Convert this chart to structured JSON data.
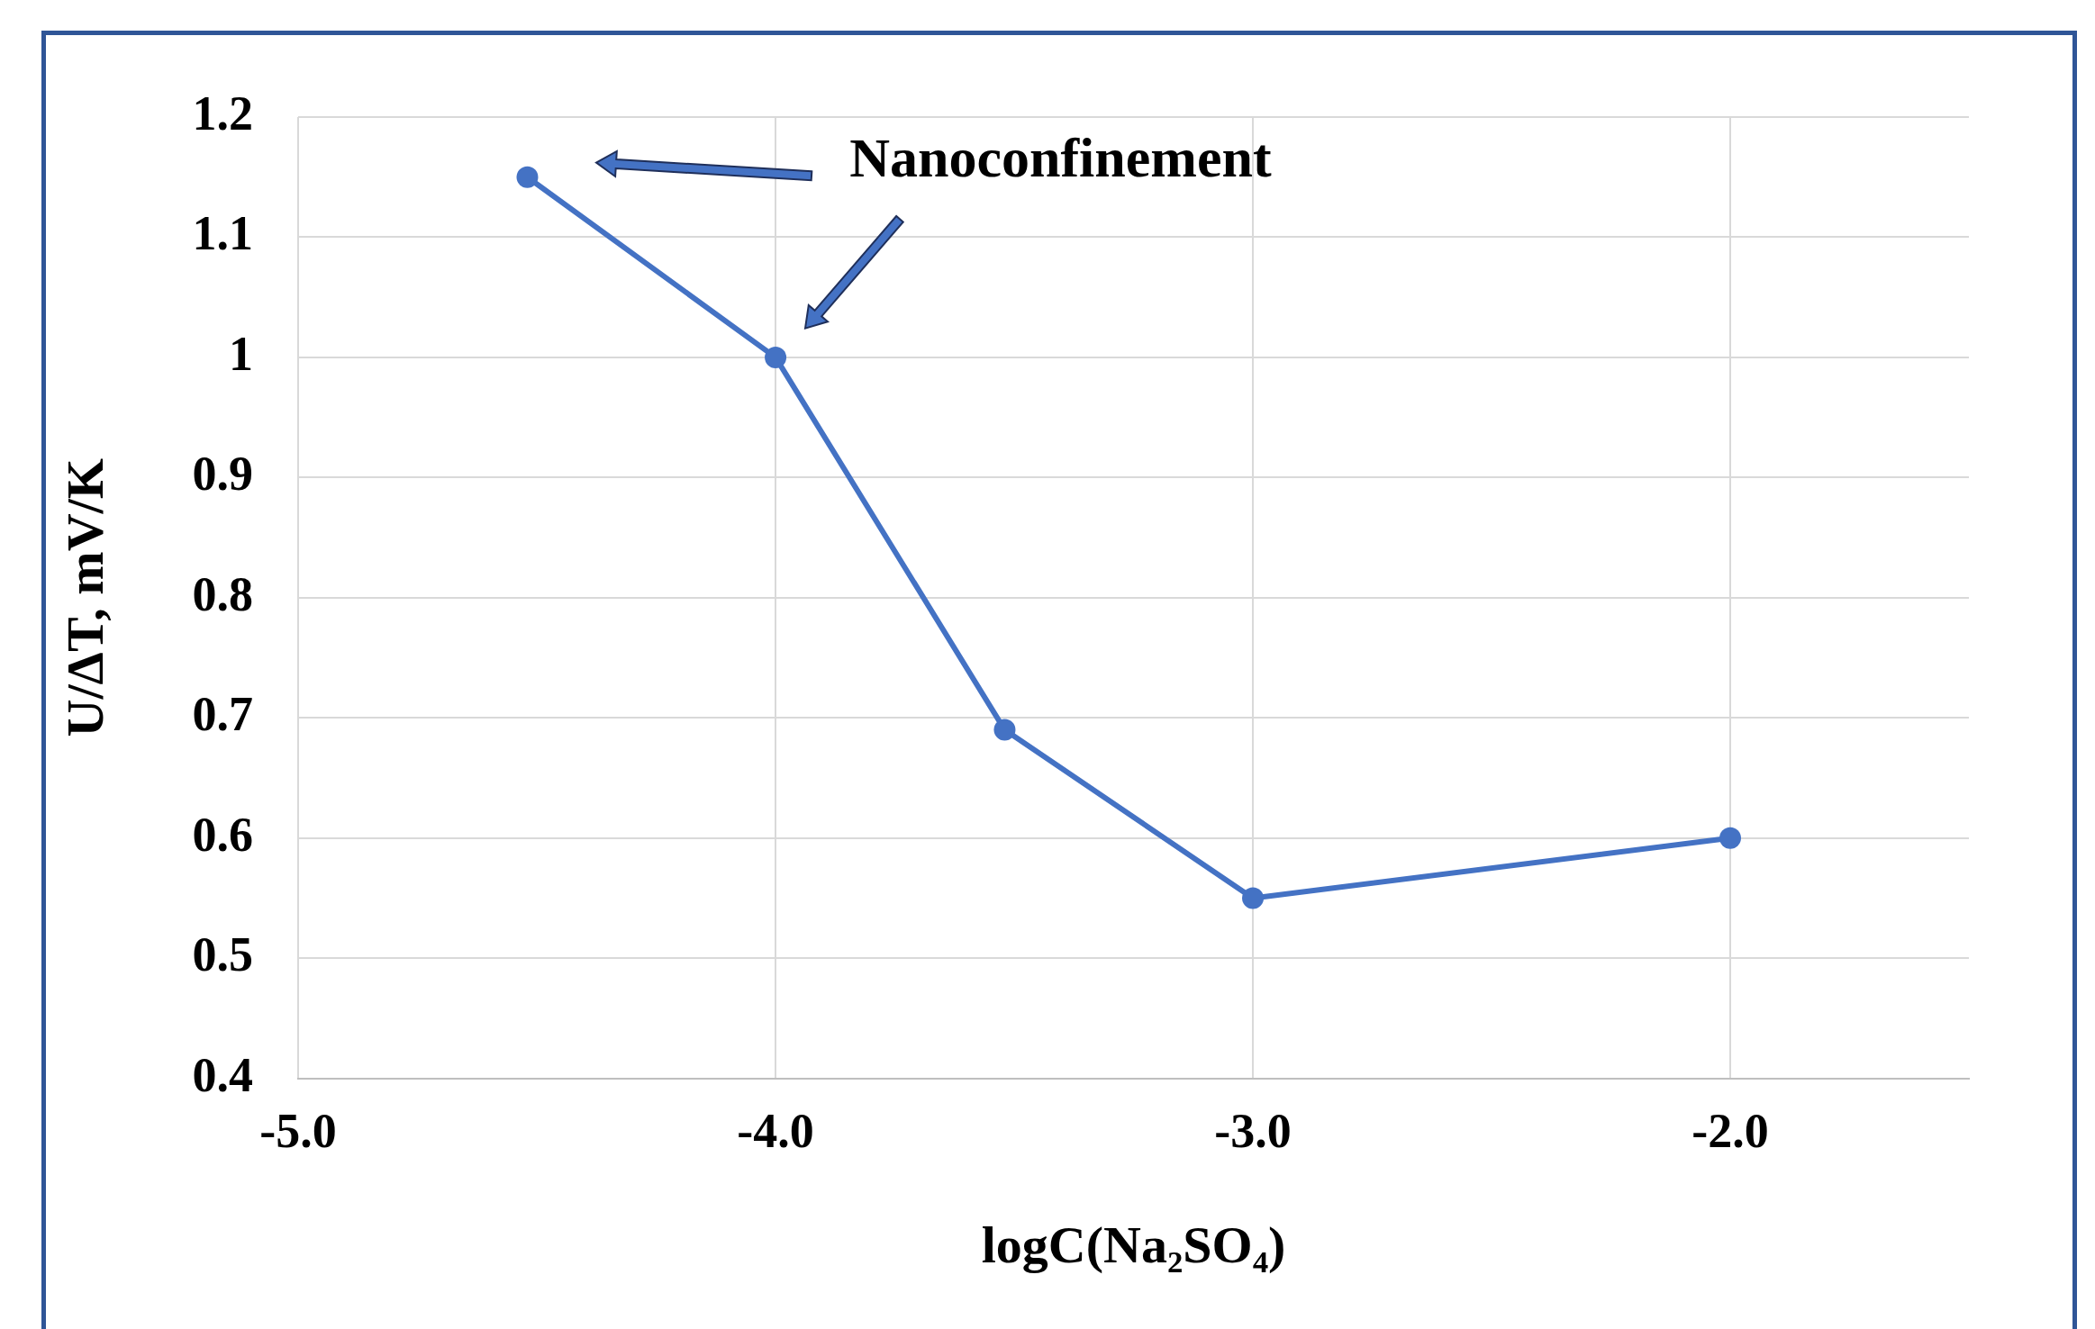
{
  "chart_data": {
    "type": "line",
    "xlabel": "logC(Na₂SO₄)",
    "ylabel": "U/ΔT, mV/K",
    "x": [
      -4.52,
      -4.0,
      -3.52,
      -3.0,
      -2.0
    ],
    "series": [
      {
        "color": "#4472c4",
        "values": [
          1.15,
          1.0,
          0.69,
          0.55,
          0.6
        ]
      }
    ],
    "xlim": [
      -5,
      -1.5
    ],
    "xticks": [
      {
        "value": -5,
        "label": "-5.0"
      },
      {
        "value": -4,
        "label": "-4.0"
      },
      {
        "value": -3,
        "label": "-3.0"
      },
      {
        "value": -2,
        "label": "-2.0"
      }
    ],
    "ylim": [
      0.4,
      1.2
    ],
    "yticks": [
      0.4,
      0.5,
      0.6,
      0.7,
      0.8,
      0.9,
      1,
      1.1,
      1.2
    ],
    "grid": true,
    "legend": false,
    "marker": "circle",
    "line_style": "solid",
    "annotations": [
      "Nanoconfinement"
    ]
  }
}
